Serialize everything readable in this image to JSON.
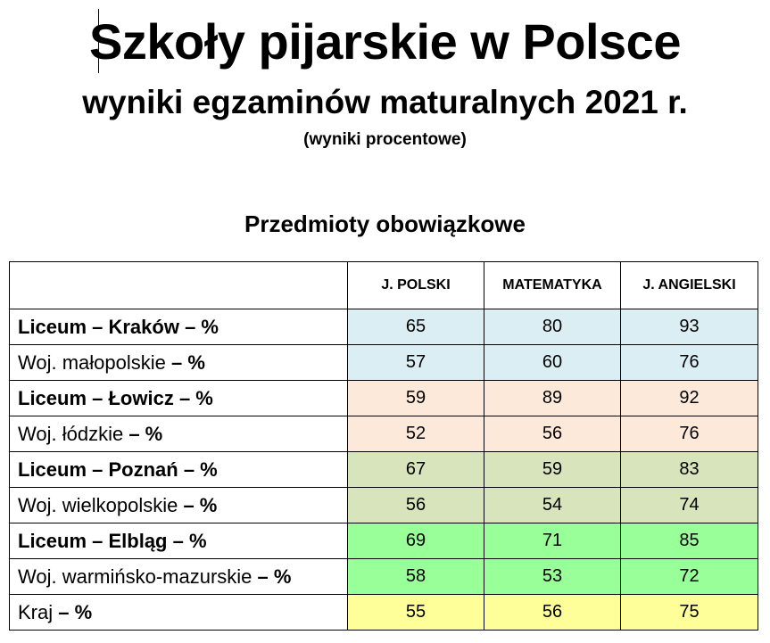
{
  "header": {
    "title": "Szkoły pijarskie w Polsce",
    "subtitle": "wyniki egzaminów maturalnych 2021 r.",
    "note": "(wyniki procentowe)",
    "section_title": "Przedmioty obowiązkowe"
  },
  "table": {
    "columns": [
      "",
      "J. POLSKI",
      "MATEMATYKA",
      "J. ANGIELSKI"
    ],
    "rows": [
      {
        "label_main": "Liceum – Kraków",
        "label_suffix": " – %",
        "bold_all": true,
        "values": [
          "65",
          "80",
          "93"
        ],
        "color": "#daeef3"
      },
      {
        "label_main": "Woj. małopolskie",
        "label_suffix": " – %",
        "bold_all": false,
        "values": [
          "57",
          "60",
          "76"
        ],
        "color": "#daeef3"
      },
      {
        "label_main": "Liceum – Łowicz",
        "label_suffix": " – %",
        "bold_all": true,
        "values": [
          "59",
          "89",
          "92"
        ],
        "color": "#fde9d9"
      },
      {
        "label_main": "Woj. łódzkie",
        "label_suffix": " – %",
        "bold_all": false,
        "values": [
          "52",
          "56",
          "76"
        ],
        "color": "#fde9d9"
      },
      {
        "label_main": "Liceum – Poznań",
        "label_suffix": " – %",
        "bold_all": true,
        "values": [
          "67",
          "59",
          "83"
        ],
        "color": "#d7e4bc"
      },
      {
        "label_main": "Woj. wielkopolskie",
        "label_suffix": " – %",
        "bold_all": false,
        "values": [
          "56",
          "54",
          "74"
        ],
        "color": "#d7e4bc"
      },
      {
        "label_main": "Liceum – Elbląg",
        "label_suffix": " – %",
        "bold_all": true,
        "values": [
          "69",
          "71",
          "85"
        ],
        "color": "#99ff99"
      },
      {
        "label_main": "Woj. warmińsko-mazurskie",
        "label_suffix": " – %",
        "bold_all": false,
        "values": [
          "58",
          "53",
          "72"
        ],
        "color": "#99ff99"
      },
      {
        "label_main": "Kraj",
        "label_suffix": " – %",
        "bold_all": false,
        "values": [
          "55",
          "56",
          "75"
        ],
        "color": "#ffff99"
      }
    ]
  }
}
